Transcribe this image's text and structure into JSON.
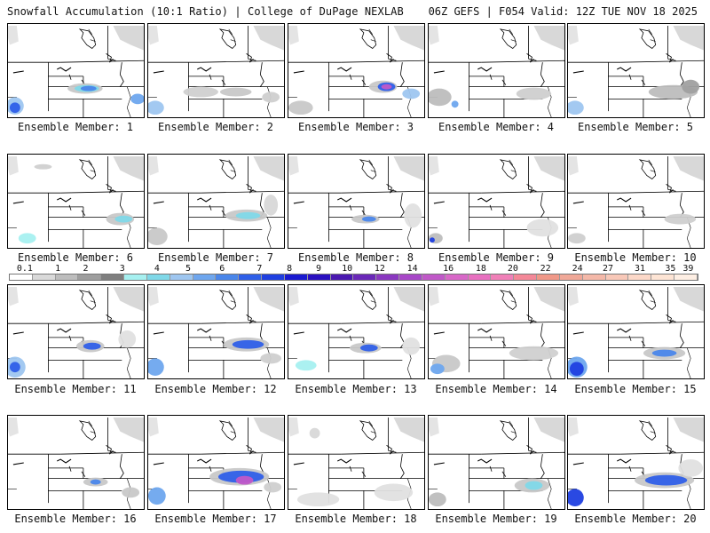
{
  "header": {
    "title": "Snowfall Accumulation (10:1 Ratio) | College of DuPage NEXLAB",
    "run_info": "06Z GEFS | F054 Valid: 12Z TUE NOV 18 2025"
  },
  "legend": {
    "labels": [
      "0.1",
      "1",
      "2",
      "3",
      "4",
      "5",
      "6",
      "7",
      "8",
      "9",
      "10",
      "12",
      "14",
      "16",
      "18",
      "20",
      "22",
      "24",
      "27",
      "31",
      "35",
      "39"
    ],
    "colors": [
      "#ffffff",
      "#d9d9d9",
      "#bdbdbd",
      "#9e9e9e",
      "#7f7f7f",
      "#a6f0f0",
      "#7fd8e8",
      "#9ec6f0",
      "#6ea6ee",
      "#4a86ea",
      "#2f5fe8",
      "#1f3fe0",
      "#1a1ad0",
      "#2a10c0",
      "#4a18b0",
      "#6a28b8",
      "#8a38c0",
      "#a848c8",
      "#c058c8",
      "#d868c8",
      "#e870c0",
      "#f080b8",
      "#f48898",
      "#f09888",
      "#f0a898",
      "#f4b8a8",
      "#f8c8b8",
      "#fcd8c8",
      "#fde4d4",
      "#feefe4"
    ]
  },
  "panels": [
    {
      "caption": "Ensemble Member: 1"
    },
    {
      "caption": "Ensemble Member: 2"
    },
    {
      "caption": "Ensemble Member: 3"
    },
    {
      "caption": "Ensemble Member: 4"
    },
    {
      "caption": "Ensemble Member: 5"
    },
    {
      "caption": "Ensemble Member: 6"
    },
    {
      "caption": "Ensemble Member: 7"
    },
    {
      "caption": "Ensemble Member: 8"
    },
    {
      "caption": "Ensemble Member: 9"
    },
    {
      "caption": "Ensemble Member: 10"
    },
    {
      "caption": "Ensemble Member: 11"
    },
    {
      "caption": "Ensemble Member: 12"
    },
    {
      "caption": "Ensemble Member: 13"
    },
    {
      "caption": "Ensemble Member: 14"
    },
    {
      "caption": "Ensemble Member: 15"
    },
    {
      "caption": "Ensemble Member: 16"
    },
    {
      "caption": "Ensemble Member: 17"
    },
    {
      "caption": "Ensemble Member: 18"
    },
    {
      "caption": "Ensemble Member: 19"
    },
    {
      "caption": "Ensemble Member: 20"
    }
  ]
}
